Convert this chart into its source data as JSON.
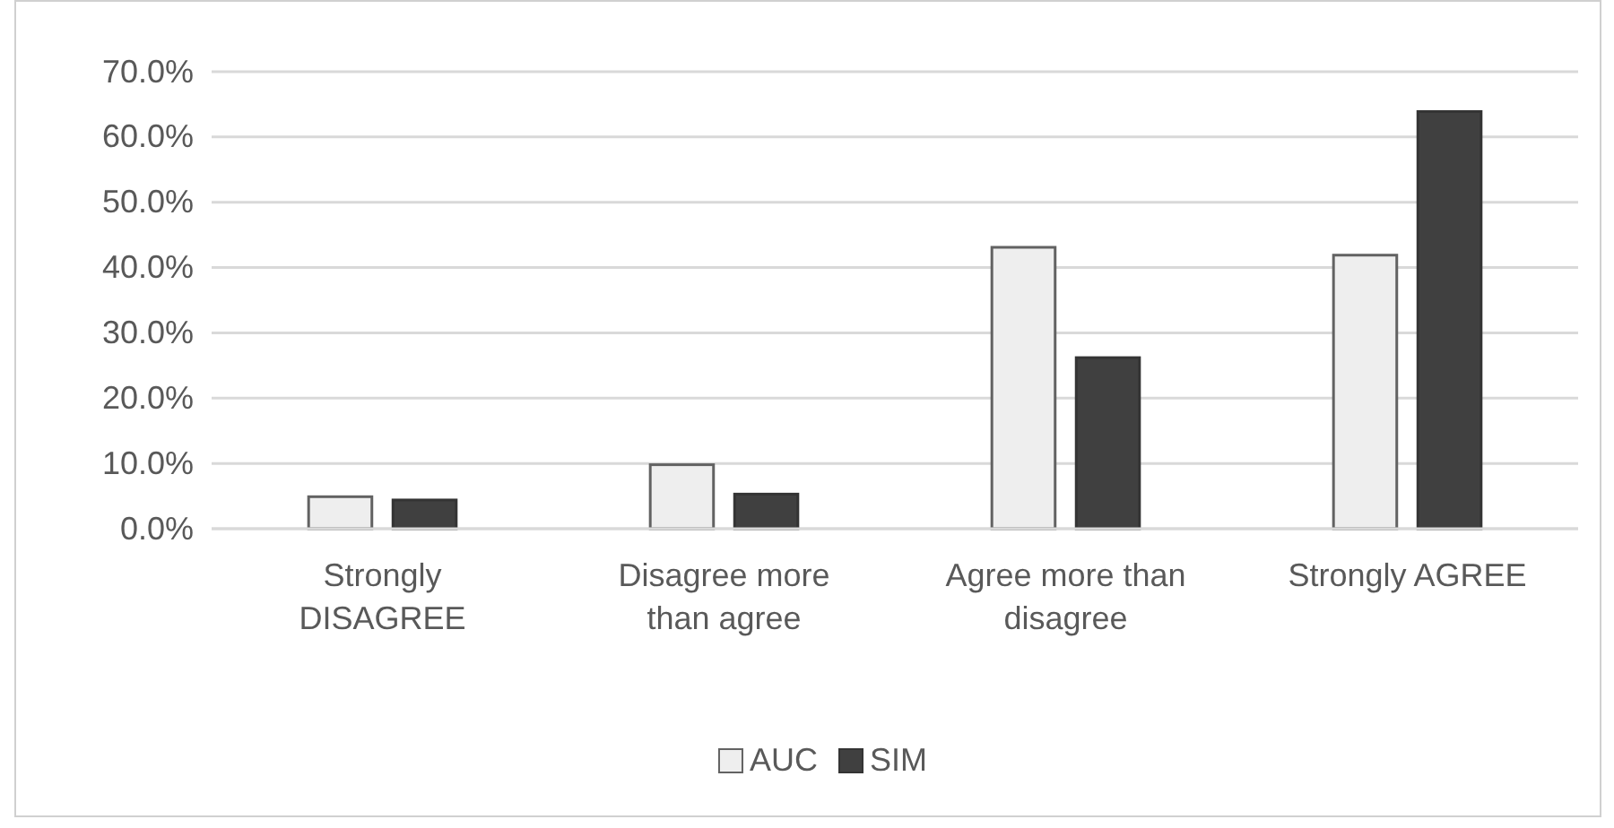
{
  "chart_data": {
    "type": "bar",
    "categories": [
      "Strongly DISAGREE",
      "Disagree more than agree",
      "Agree more than disagree",
      "Strongly AGREE"
    ],
    "series": [
      {
        "name": "AUC",
        "color": "#eeeeee",
        "values": [
          4.9,
          9.8,
          43.1,
          41.9
        ]
      },
      {
        "name": "SIM",
        "color": "#404040",
        "values": [
          4.4,
          5.3,
          26.2,
          63.9
        ]
      }
    ],
    "ylim": [
      0,
      70
    ],
    "yticks": [
      {
        "value": 0,
        "label": "0.0%"
      },
      {
        "value": 10,
        "label": "10.0%"
      },
      {
        "value": 20,
        "label": "20.0%"
      },
      {
        "value": 30,
        "label": "30.0%"
      },
      {
        "value": 40,
        "label": "40.0%"
      },
      {
        "value": 50,
        "label": "50.0%"
      },
      {
        "value": 60,
        "label": "60.0%"
      },
      {
        "value": 70,
        "label": "70.0%"
      }
    ],
    "grid": "y",
    "legend": "bottom"
  }
}
